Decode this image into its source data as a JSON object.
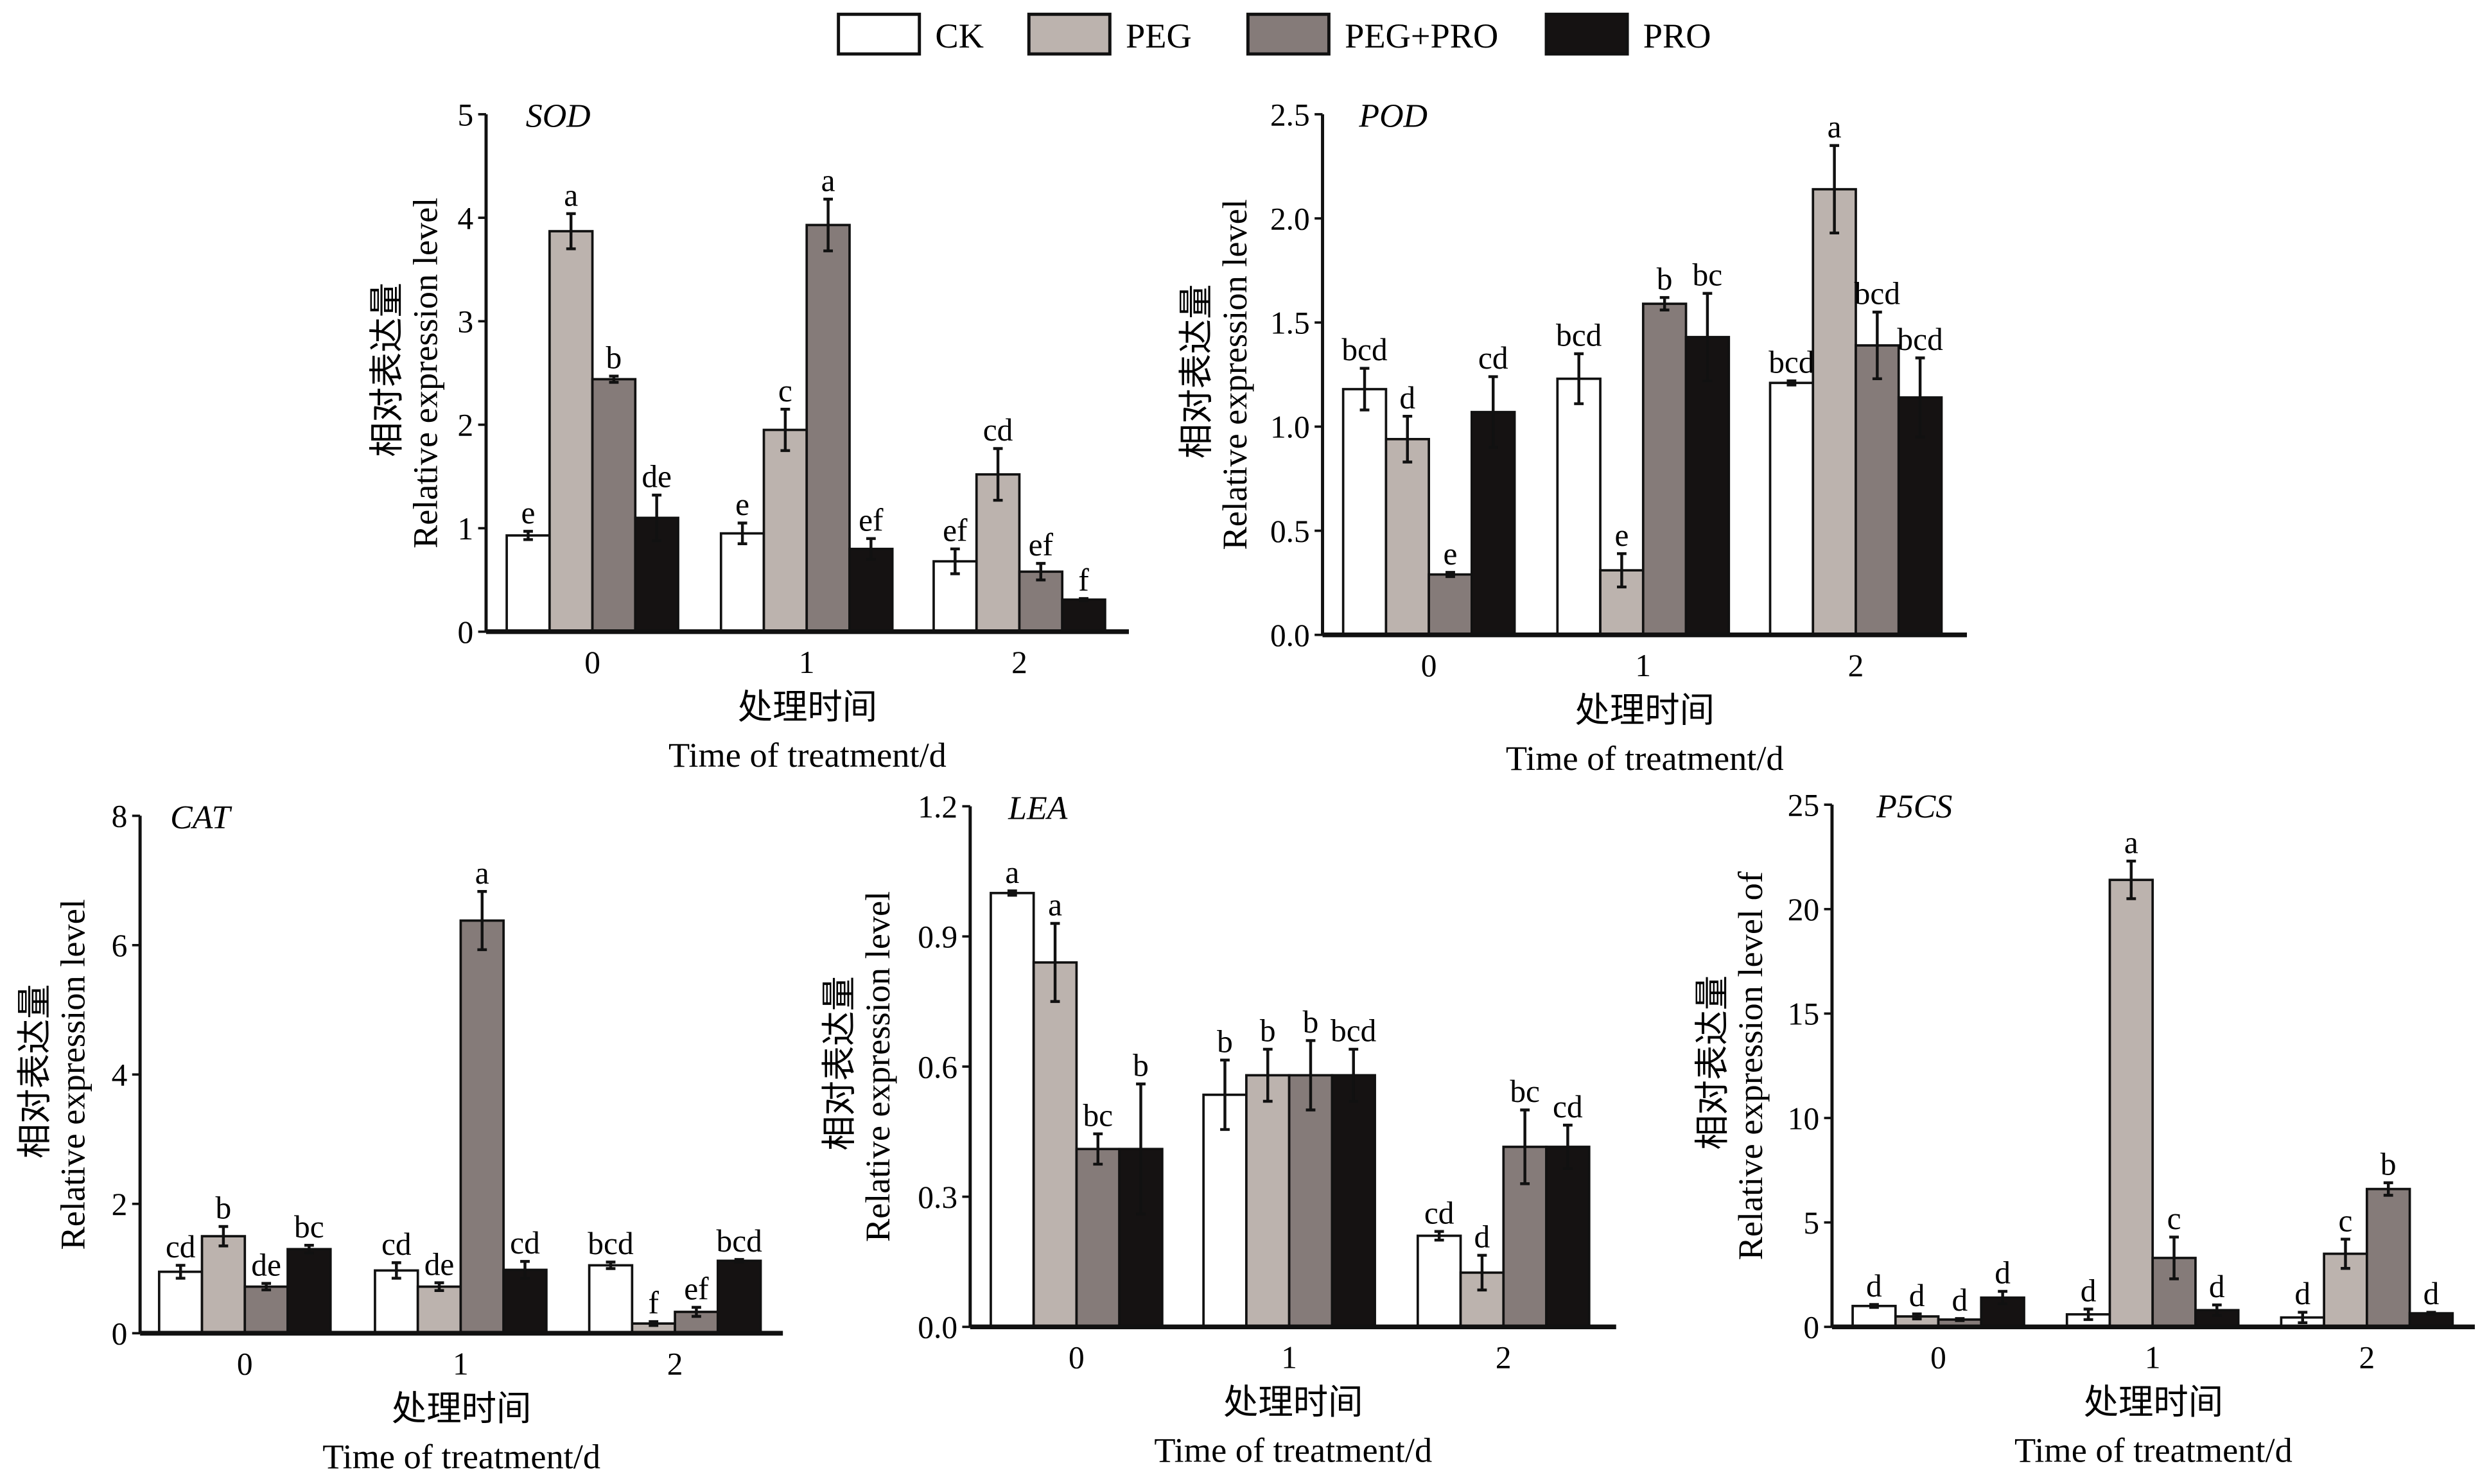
{
  "legend": [
    {
      "name": "CK",
      "color": "#ffffff"
    },
    {
      "name": "PEG",
      "color": "#bcb3ae"
    },
    {
      "name": "PEG+PRO",
      "color": "#857b79"
    },
    {
      "name": "PRO",
      "color": "#151212"
    }
  ],
  "chart_data": [
    {
      "type": "bar",
      "title": "SOD",
      "xlabel_cn": "处理时间",
      "xlabel": "Time of treatment/d",
      "ylabel_cn": "相对表达量",
      "ylabel": "Relative expression level",
      "categories": [
        "0",
        "1",
        "2"
      ],
      "ylim": [
        0,
        5
      ],
      "yticks": [
        "0",
        "1",
        "2",
        "3",
        "4",
        "5"
      ],
      "series": [
        {
          "name": "CK",
          "values": [
            0.93,
            0.95,
            0.68
          ],
          "errors": [
            0.04,
            0.1,
            0.12
          ],
          "letters": [
            "e",
            "e",
            "ef"
          ]
        },
        {
          "name": "PEG",
          "values": [
            3.87,
            1.95,
            1.52
          ],
          "errors": [
            0.17,
            0.2,
            0.25
          ],
          "letters": [
            "a",
            "c",
            "cd"
          ]
        },
        {
          "name": "PEG+PRO",
          "values": [
            2.44,
            3.93,
            0.58
          ],
          "errors": [
            0.03,
            0.25,
            0.08
          ],
          "letters": [
            "b",
            "a",
            "ef"
          ]
        },
        {
          "name": "PRO",
          "values": [
            1.1,
            0.8,
            0.31
          ],
          "errors": [
            0.22,
            0.1,
            0.01
          ],
          "letters": [
            "de",
            "ef",
            "f"
          ]
        }
      ]
    },
    {
      "type": "bar",
      "title": "POD",
      "xlabel_cn": "处理时间",
      "xlabel": "Time of treatment/d",
      "ylabel_cn": "相对表达量",
      "ylabel": "Relative expression level",
      "categories": [
        "0",
        "1",
        "2"
      ],
      "ylim": [
        0,
        2.5
      ],
      "yticks": [
        "0.0",
        "0.5",
        "1.0",
        "1.5",
        "2.0",
        "2.5"
      ],
      "series": [
        {
          "name": "CK",
          "values": [
            1.18,
            1.23,
            1.21
          ],
          "errors": [
            0.1,
            0.12,
            0.01
          ],
          "letters": [
            "bcd",
            "bcd",
            "bcd"
          ]
        },
        {
          "name": "PEG",
          "values": [
            0.94,
            0.31,
            2.14
          ],
          "errors": [
            0.11,
            0.08,
            0.21
          ],
          "letters": [
            "d",
            "e",
            "a"
          ]
        },
        {
          "name": "PEG+PRO",
          "values": [
            0.29,
            1.59,
            1.39
          ],
          "errors": [
            0.01,
            0.03,
            0.16
          ],
          "letters": [
            "e",
            "b",
            "bcd"
          ]
        },
        {
          "name": "PRO",
          "values": [
            1.07,
            1.43,
            1.14
          ],
          "errors": [
            0.17,
            0.21,
            0.19
          ],
          "letters": [
            "cd",
            "bc",
            "bcd"
          ]
        }
      ]
    },
    {
      "type": "bar",
      "title": "CAT",
      "xlabel_cn": "处理时间",
      "xlabel": "Time of treatment/d",
      "ylabel_cn": "相对表达量",
      "ylabel": "Relative expression level",
      "categories": [
        "0",
        "1",
        "2"
      ],
      "ylim": [
        0,
        8
      ],
      "yticks": [
        "0",
        "2",
        "4",
        "6",
        "8"
      ],
      "series": [
        {
          "name": "CK",
          "values": [
            0.95,
            0.97,
            1.05
          ],
          "errors": [
            0.1,
            0.12,
            0.05
          ],
          "letters": [
            "cd",
            "cd",
            "bcd"
          ]
        },
        {
          "name": "PEG",
          "values": [
            1.5,
            0.72,
            0.15
          ],
          "errors": [
            0.15,
            0.06,
            0.03
          ],
          "letters": [
            "b",
            "de",
            "f"
          ]
        },
        {
          "name": "PEG+PRO",
          "values": [
            0.72,
            6.38,
            0.33
          ],
          "errors": [
            0.05,
            0.45,
            0.07
          ],
          "letters": [
            "de",
            "a",
            "ef"
          ]
        },
        {
          "name": "PRO",
          "values": [
            1.3,
            0.98,
            1.12
          ],
          "errors": [
            0.06,
            0.13,
            0.02
          ],
          "letters": [
            "bc",
            "cd",
            "bcd"
          ]
        }
      ]
    },
    {
      "type": "bar",
      "title": "LEA",
      "xlabel_cn": "处理时间",
      "xlabel": "Time of treatment/d",
      "ylabel_cn": "相对表达量",
      "ylabel": "Relative expression level",
      "categories": [
        "0",
        "1",
        "2"
      ],
      "ylim": [
        0,
        1.2
      ],
      "yticks": [
        "0.0",
        "0.3",
        "0.6",
        "0.9",
        "1.2"
      ],
      "series": [
        {
          "name": "CK",
          "values": [
            1.0,
            0.535,
            0.21
          ],
          "errors": [
            0.005,
            0.08,
            0.01
          ],
          "letters": [
            "a",
            "b",
            "cd"
          ]
        },
        {
          "name": "PEG",
          "values": [
            0.84,
            0.58,
            0.125
          ],
          "errors": [
            0.09,
            0.06,
            0.04
          ],
          "letters": [
            "a",
            "b",
            "d"
          ]
        },
        {
          "name": "PEG+PRO",
          "values": [
            0.41,
            0.58,
            0.415
          ],
          "errors": [
            0.035,
            0.08,
            0.085
          ],
          "letters": [
            "bc",
            "b",
            "bc"
          ]
        },
        {
          "name": "PRO",
          "values": [
            0.41,
            0.58,
            0.415
          ],
          "errors": [
            0.15,
            0.06,
            0.05
          ],
          "letters": [
            "b",
            "bcd",
            "cd"
          ]
        }
      ]
    },
    {
      "type": "bar",
      "title": "P5CS",
      "xlabel_cn": "处理时间",
      "xlabel": "Time of treatment/d",
      "ylabel_cn": "相对表达量",
      "ylabel": "Relative expression level of",
      "categories": [
        "0",
        "1",
        "2"
      ],
      "ylim": [
        0,
        25
      ],
      "yticks": [
        "0",
        "5",
        "10",
        "15",
        "20",
        "25"
      ],
      "series": [
        {
          "name": "CK",
          "values": [
            1.0,
            0.6,
            0.45
          ],
          "errors": [
            0.07,
            0.25,
            0.25
          ],
          "letters": [
            "d",
            "d",
            "d"
          ]
        },
        {
          "name": "PEG",
          "values": [
            0.5,
            21.4,
            3.5
          ],
          "errors": [
            0.12,
            0.9,
            0.7
          ],
          "letters": [
            "d",
            "a",
            "c"
          ]
        },
        {
          "name": "PEG+PRO",
          "values": [
            0.35,
            3.3,
            6.6
          ],
          "errors": [
            0.05,
            1.0,
            0.3
          ],
          "letters": [
            "d",
            "c",
            "b"
          ]
        },
        {
          "name": "PRO",
          "values": [
            1.4,
            0.8,
            0.65
          ],
          "errors": [
            0.3,
            0.25,
            0.05
          ],
          "letters": [
            "d",
            "d",
            "d"
          ]
        }
      ]
    }
  ]
}
